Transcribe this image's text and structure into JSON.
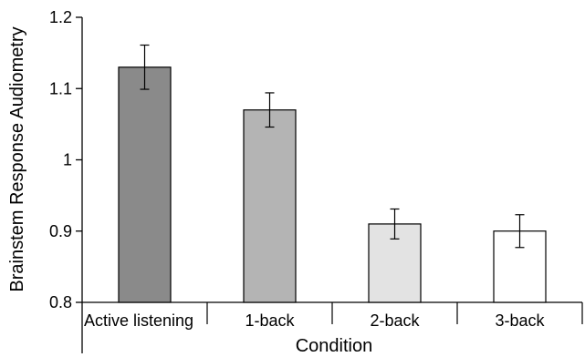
{
  "chart_data": {
    "type": "bar",
    "title": "",
    "xlabel": "Condition",
    "ylabel": "Brainstem Response Audiometry",
    "ylim": [
      0.8,
      1.2
    ],
    "yticks": [
      0.8,
      0.9,
      1,
      1.1,
      1.2
    ],
    "ytick_labels": [
      "0.8",
      "0.9",
      "1",
      "1.1",
      "1.2"
    ],
    "grid": false,
    "legend": "none",
    "categories": [
      "Active listening",
      "1-back",
      "2-back",
      "3-back"
    ],
    "values": [
      1.13,
      1.07,
      0.91,
      0.9
    ],
    "error_low": [
      1.099,
      1.046,
      0.889,
      0.877
    ],
    "error_high": [
      1.161,
      1.094,
      0.931,
      0.923
    ],
    "bar_colors": [
      "#8a8a8a",
      "#b4b4b4",
      "#e3e3e3",
      "#ffffff"
    ]
  }
}
